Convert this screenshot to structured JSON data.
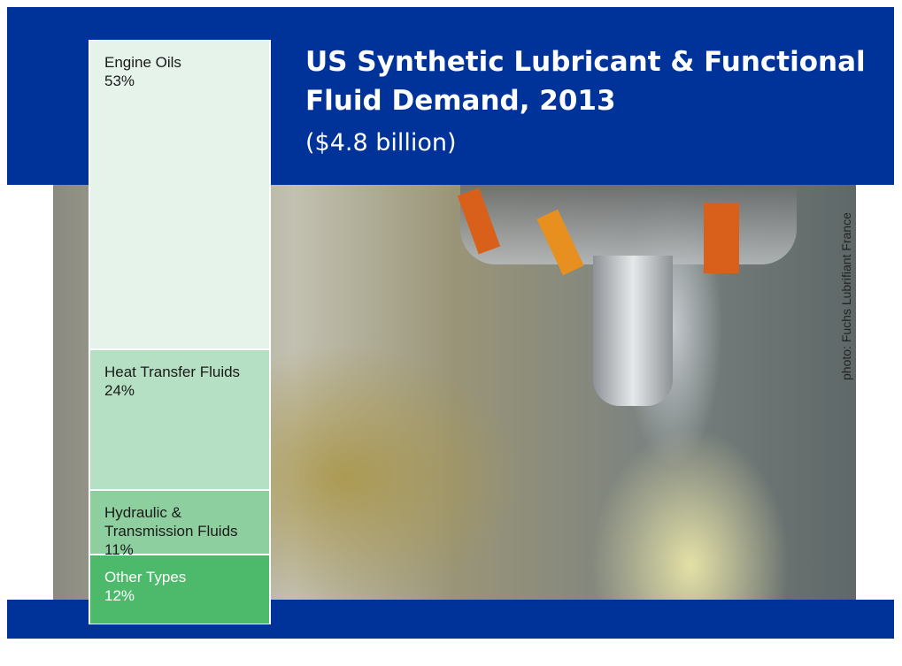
{
  "chart_data": {
    "type": "stacked-bar-100",
    "title": "US Synthetic Lubricant & Functional Fluid Demand, 2013",
    "subtitle": "($4.8 billion)",
    "categories": [
      "Engine Oils",
      "Heat Transfer Fluids",
      "Hydraulic & Transmission Fluids",
      "Other Types"
    ],
    "values": [
      53,
      24,
      11,
      12
    ],
    "value_labels": [
      "53%",
      "24%",
      "11%",
      "12%"
    ],
    "colors": [
      "#e5f3ea",
      "#b6e0c3",
      "#8ecf9f",
      "#4db96b"
    ],
    "label_colors": [
      "#1a1a1a",
      "#1a1a1a",
      "#1a1a1a",
      "#ffffff"
    ],
    "credit": "photo: Fuchs Lubrifiant France"
  }
}
